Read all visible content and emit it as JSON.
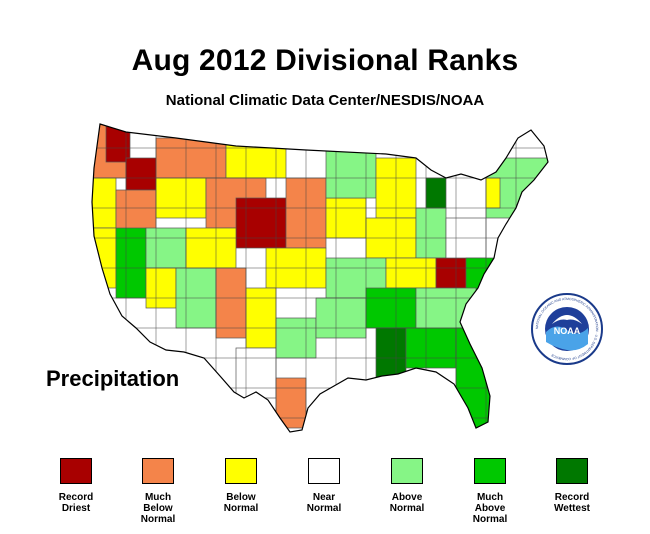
{
  "title": "Aug 2012 Divisional Ranks",
  "subtitle": "National Climatic Data Center/NESDIS/NOAA",
  "variable_label": "Precipitation",
  "logo": {
    "text": "NOAA",
    "ring_text": "NATIONAL OCEANIC AND ATMOSPHERIC ADMINISTRATION · U.S. DEPARTMENT OF COMMERCE"
  },
  "legend": [
    {
      "label": "Record\nDriest",
      "color": "#a80000"
    },
    {
      "label": "Much\nBelow\nNormal",
      "color": "#f4844a"
    },
    {
      "label": "Below\nNormal",
      "color": "#ffff00"
    },
    {
      "label": "Near\nNormal",
      "color": "#ffffff"
    },
    {
      "label": "Above\nNormal",
      "color": "#86f586"
    },
    {
      "label": "Much\nAbove\nNormal",
      "color": "#00c800"
    },
    {
      "label": "Record\nWettest",
      "color": "#007800"
    }
  ]
}
